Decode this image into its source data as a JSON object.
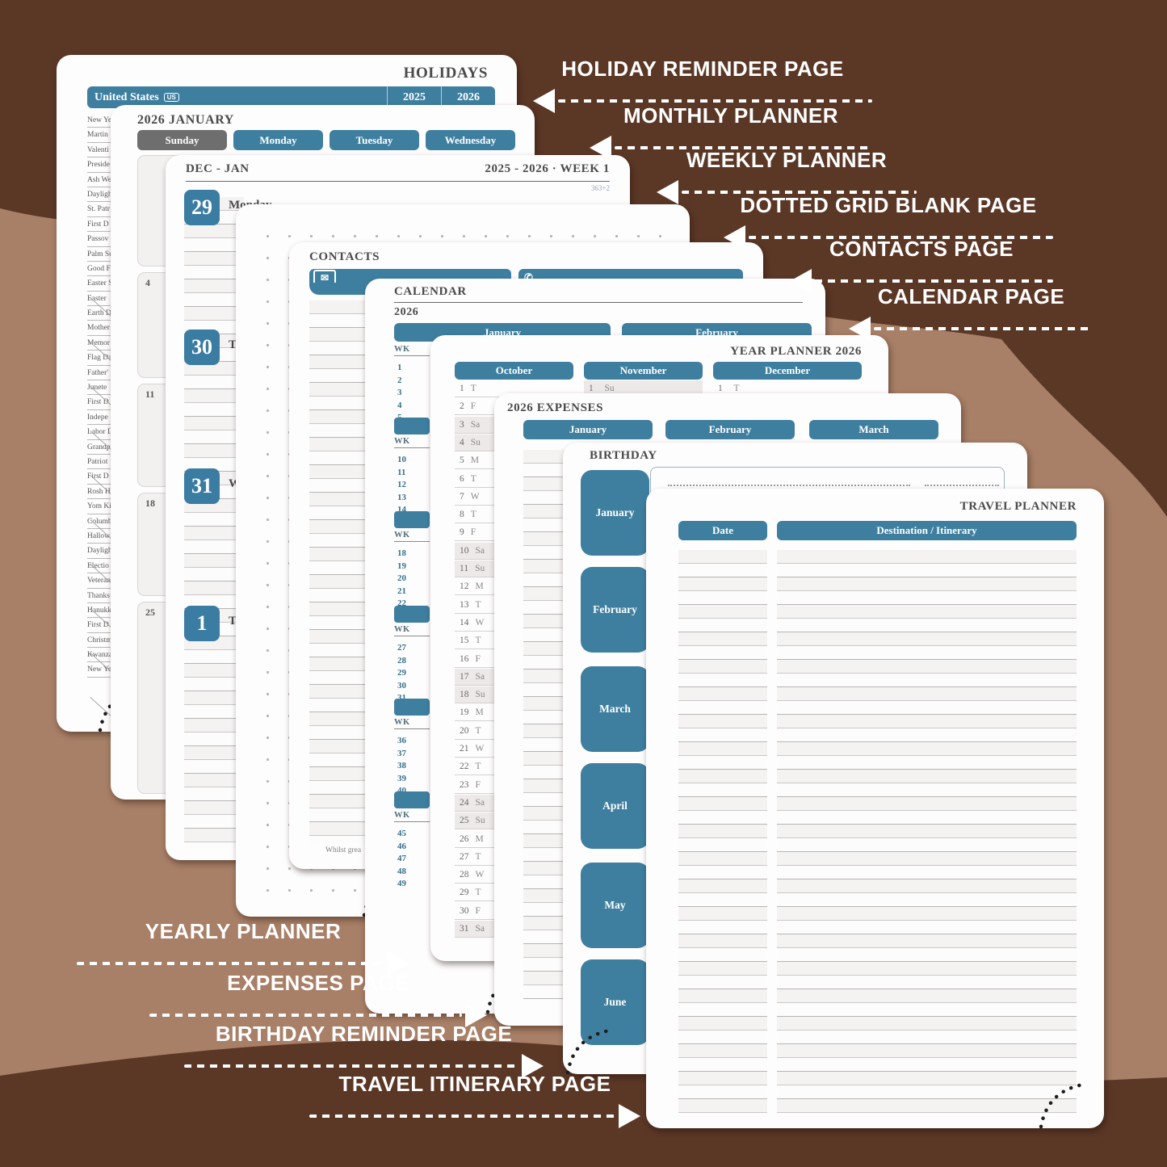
{
  "colors": {
    "background_brown": "#5b3726",
    "curve_tan": "#a87f67",
    "accent_teal": "#3e7fa0",
    "header_gray": "#6f6e6e"
  },
  "callouts": {
    "right": [
      {
        "label": "HOLIDAY REMINDER PAGE"
      },
      {
        "label": "MONTHLY PLANNER"
      },
      {
        "label": "WEEKLY PLANNER"
      },
      {
        "label": "DOTTED GRID BLANK PAGE"
      },
      {
        "label": "CONTACTS PAGE"
      },
      {
        "label": "CALENDAR PAGE"
      }
    ],
    "left": [
      {
        "label": "YEARLY PLANNER"
      },
      {
        "label": "EXPENSES PAGE"
      },
      {
        "label": "BIRTHDAY REMINDER PAGE"
      },
      {
        "label": "TRAVEL ITINERARY PAGE"
      }
    ]
  },
  "pages": {
    "holidays": {
      "title": "HOLIDAYS",
      "country": "United States",
      "country_badge": "US",
      "years": [
        "2025",
        "2026"
      ],
      "holiday_names": [
        "New Ye",
        "Martin",
        "Valenti",
        "Preside",
        "Ash We",
        "Dayligh",
        "St. Patr",
        "First D",
        "Passov",
        "Palm Su",
        "Good F",
        "Easter S",
        "Easter",
        "Earth D",
        "Mother",
        "Memor",
        "Flag Da",
        "Father'",
        "Junete",
        "First D",
        "Indepe",
        "Labor D",
        "Grandp",
        "Patriot",
        "First D",
        "Rosh H",
        "Yom Ki",
        "Columb",
        "Hallow",
        "Dayligh",
        "Electio",
        "Veteran",
        "Thanks",
        "Hanukk",
        "First D",
        "Christm",
        "Kwanza",
        "New Ye"
      ]
    },
    "monthly": {
      "title": "2026 JANUARY",
      "day_headers": [
        "Sunday",
        "Monday",
        "Tuesday",
        "Wednesday"
      ],
      "sunday_dates": [
        "",
        "4",
        "11",
        "18",
        "25"
      ]
    },
    "weekly": {
      "title_left": "DEC - JAN",
      "title_right": "2025 - 2026 · WEEK 1",
      "note": "363+2",
      "days": [
        {
          "num": "29",
          "name": "Monday"
        },
        {
          "num": "30",
          "name": "Tuesday"
        },
        {
          "num": "31",
          "name": "Wednesday"
        },
        {
          "num": "1",
          "name": "Thursday"
        }
      ]
    },
    "contacts": {
      "title": "CONTACTS",
      "footnote": "Whilst grea"
    },
    "calendar": {
      "title": "CALENDAR",
      "year": "2026",
      "months": [
        "January",
        "February"
      ],
      "wk_label": "WK",
      "week_groups": [
        [
          "1",
          "2",
          "3",
          "4",
          "5"
        ],
        [
          "10",
          "11",
          "12",
          "13",
          "14"
        ],
        [
          "18",
          "19",
          "20",
          "21",
          "22"
        ],
        [
          "27",
          "28",
          "29",
          "30",
          "31"
        ],
        [
          "36",
          "37",
          "38",
          "39",
          "40"
        ],
        [
          "45",
          "46",
          "47",
          "48",
          "49"
        ]
      ]
    },
    "year_planner": {
      "title": "YEAR PLANNER 2026",
      "months": [
        "October",
        "November",
        "December"
      ],
      "october_days": [
        "1 T",
        "2 F",
        "3 Sa",
        "4 Su",
        "5 M",
        "6 T",
        "7 W",
        "8 T",
        "9 F",
        "10 Sa",
        "11 Su",
        "12 M",
        "13 T",
        "14 W",
        "15 T",
        "16 F",
        "17 Sa",
        "18 Su",
        "19 M",
        "20 T",
        "21 W",
        "22 T",
        "23 F",
        "24 Sa",
        "25 Su",
        "26 M",
        "27 T",
        "28 W",
        "29 T",
        "30 F",
        "31 Sa"
      ],
      "november_first": "1 Su",
      "december_first": "1 T"
    },
    "expenses": {
      "title": "2026 EXPENSES",
      "months": [
        "January",
        "February",
        "March"
      ]
    },
    "birthday": {
      "title": "BIRTHDAY",
      "month_tabs": [
        "January",
        "February",
        "March",
        "April",
        "May",
        "June"
      ]
    },
    "travel": {
      "title": "TRAVEL PLANNER",
      "columns": [
        "Date",
        "Destination / Itinerary"
      ]
    }
  }
}
